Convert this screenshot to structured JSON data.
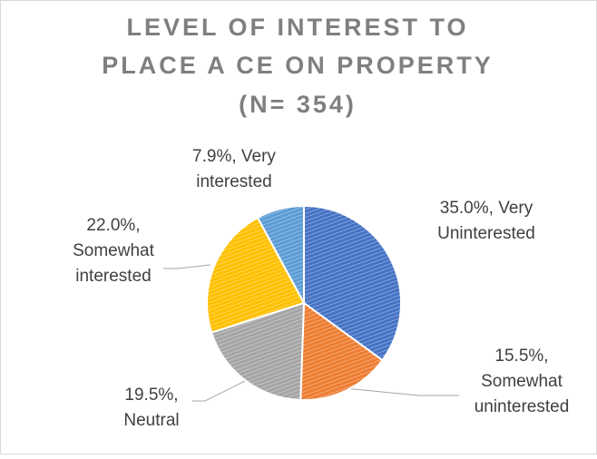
{
  "chart_data": {
    "type": "pie",
    "title": [
      "LEVEL OF INTEREST TO",
      "PLACE A CE ON PROPERTY",
      "(N= 354)"
    ],
    "values": [
      35.0,
      15.5,
      19.5,
      22.0,
      7.9
    ],
    "value_labels": [
      [
        "35.0%, Very",
        "Uninterested"
      ],
      [
        "15.5%,",
        "Somewhat",
        "uninterested"
      ],
      [
        "19.5%,",
        "Neutral"
      ],
      [
        "22.0%,",
        "Somewhat",
        "interested"
      ],
      [
        "7.9%, Very",
        "interested"
      ]
    ],
    "colors": [
      "#4472c4",
      "#ed7d31",
      "#a5a5a5",
      "#ffc000",
      "#5b9bd5"
    ]
  }
}
